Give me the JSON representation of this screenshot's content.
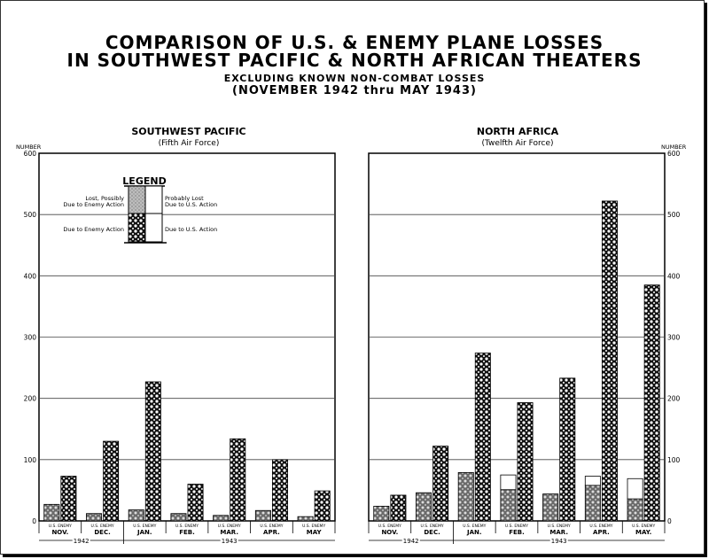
{
  "header": {
    "title_line1": "COMPARISON OF U.S. & ENEMY PLANE LOSSES",
    "title_line2": "IN SOUTHWEST PACIFIC & NORTH AFRICAN THEATERS",
    "subtitle_line1": "EXCLUDING KNOWN NON-COMBAT LOSSES",
    "subtitle_line2": "(NOVEMBER 1942 thru MAY 1943)"
  },
  "legend": {
    "title": "LEGEND",
    "us_possible_1": "Lost, Possibly",
    "us_possible_2": "Due to Enemy Action",
    "enemy_probable_1": "Probably Lost",
    "enemy_probable_2": "Due to U.S. Action",
    "us_confirmed": "Due to Enemy Action",
    "enemy_confirmed": "Due to U.S. Action"
  },
  "axis": {
    "label": "NUMBER",
    "ticks": [
      "0",
      "100",
      "200",
      "300",
      "400",
      "500",
      "600"
    ],
    "bar_pair_label": "U.S. ENEMY",
    "year_1942": "1942",
    "year_1943": "1943"
  },
  "colors": {
    "ink": "#000000",
    "grid": "#444444",
    "possible_fill": "#bdbdbd"
  },
  "chart_data": [
    {
      "type": "bar",
      "title": "SOUTHWEST PACIFIC",
      "subtitle": "(Fifth Air Force)",
      "ylabel": "NUMBER",
      "ylim": [
        0,
        600
      ],
      "categories": [
        "NOV.",
        "DEC.",
        "JAN.",
        "FEB.",
        "MAR.",
        "APR.",
        "MAY"
      ],
      "series": [
        {
          "name": "U.S. Due to Enemy Action",
          "values": [
            27,
            12,
            18,
            12,
            9,
            17,
            7
          ]
        },
        {
          "name": "U.S. Lost, Possibly Due to Enemy Action",
          "values": [
            0,
            0,
            0,
            0,
            0,
            0,
            0
          ]
        },
        {
          "name": "Enemy Due to U.S. Action",
          "values": [
            73,
            130,
            227,
            60,
            134,
            100,
            49
          ]
        },
        {
          "name": "Enemy Probably Lost Due to U.S. Action",
          "values": [
            0,
            0,
            0,
            0,
            0,
            0,
            0
          ]
        }
      ]
    },
    {
      "type": "bar",
      "title": "NORTH AFRICA",
      "subtitle": "(Twelfth Air Force)",
      "ylabel": "NUMBER",
      "ylim": [
        0,
        600
      ],
      "categories": [
        "NOV.",
        "DEC.",
        "JAN.",
        "FEB.",
        "MAR.",
        "APR.",
        "MAY."
      ],
      "series": [
        {
          "name": "U.S. Due to Enemy Action",
          "values": [
            24,
            46,
            79,
            51,
            44,
            58,
            36
          ]
        },
        {
          "name": "U.S. Lost, Possibly Due to Enemy Action",
          "values": [
            0,
            0,
            0,
            24,
            0,
            15,
            33
          ]
        },
        {
          "name": "Enemy Due to U.S. Action",
          "values": [
            42,
            122,
            274,
            193,
            233,
            522,
            385
          ]
        },
        {
          "name": "Enemy Probably Lost Due to U.S. Action",
          "values": [
            0,
            0,
            0,
            0,
            0,
            0,
            0
          ]
        }
      ]
    }
  ]
}
